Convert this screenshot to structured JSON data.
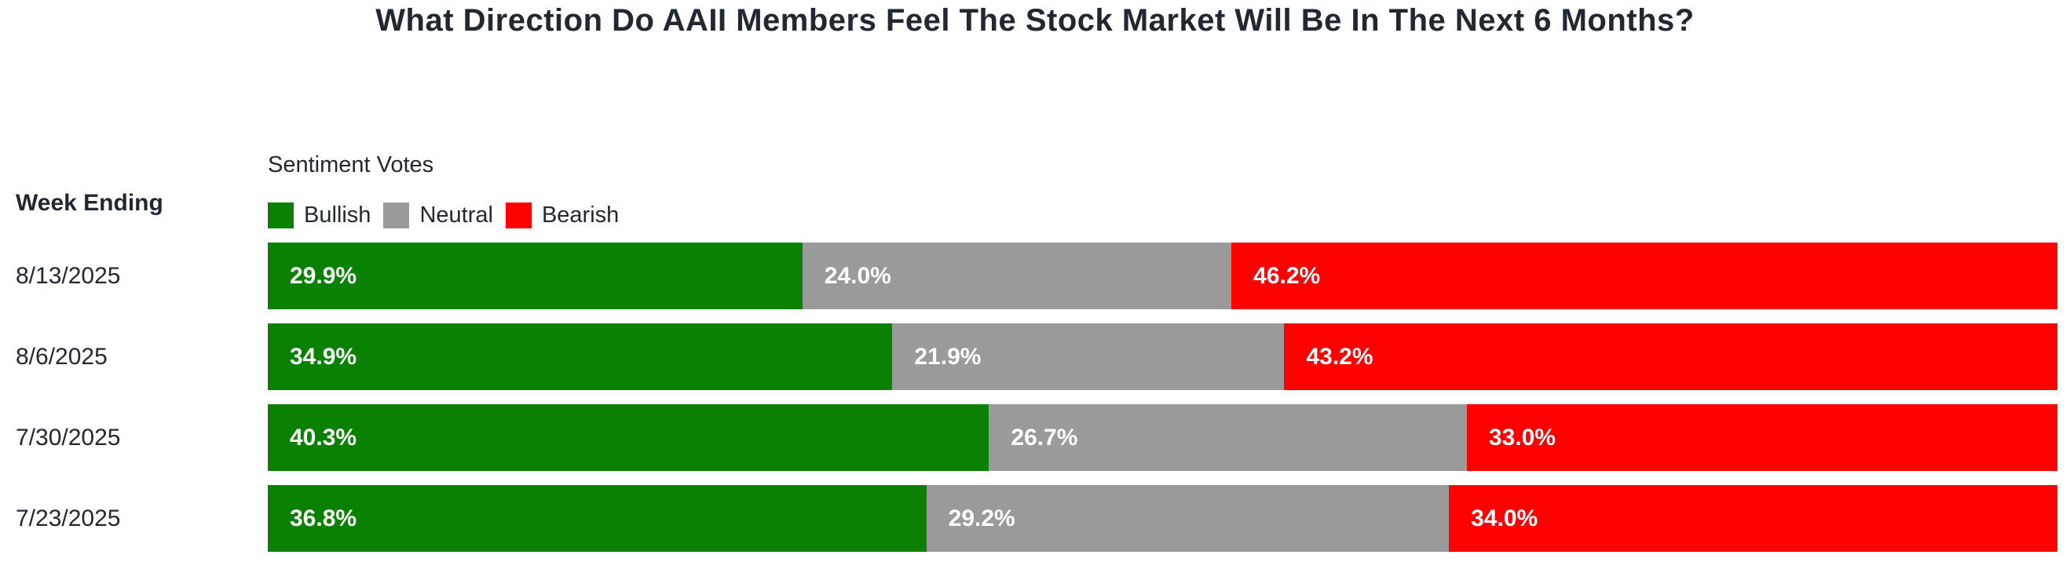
{
  "title": "What Direction Do AAII Members Feel The Stock Market Will Be In The Next 6 Months?",
  "left_header": "Week Ending",
  "legend": {
    "title": "Sentiment Votes",
    "items": [
      {
        "label": "Bullish",
        "color": "#0B8103"
      },
      {
        "label": "Neutral",
        "color": "#9A9A9A"
      },
      {
        "label": "Bearish",
        "color": "#FD0000"
      }
    ]
  },
  "colors": {
    "bullish": "#0B8103",
    "neutral": "#9A9A9A",
    "bearish": "#FD0000",
    "text": "#222831",
    "bar_label": "#FFFFFF",
    "background": "#FFFFFF"
  },
  "chart_data": {
    "type": "bar",
    "orientation": "horizontal",
    "stacked": true,
    "title": "What Direction Do AAII Members Feel The Stock Market Will Be In The Next 6 Months?",
    "legend_title": "Sentiment Votes",
    "legend_position": "top-left",
    "ylabel": "Week Ending",
    "xlabel": "",
    "xlim": [
      0,
      100
    ],
    "grid": false,
    "value_suffix": "%",
    "categories": [
      "8/13/2025",
      "8/6/2025",
      "7/30/2025",
      "7/23/2025"
    ],
    "series": [
      {
        "name": "Bullish",
        "color": "#0B8103",
        "values": [
          29.9,
          34.9,
          40.3,
          36.8
        ]
      },
      {
        "name": "Neutral",
        "color": "#9A9A9A",
        "values": [
          24.0,
          21.9,
          26.7,
          29.2
        ]
      },
      {
        "name": "Bearish",
        "color": "#FD0000",
        "values": [
          46.2,
          43.2,
          33.0,
          34.0
        ]
      }
    ]
  }
}
